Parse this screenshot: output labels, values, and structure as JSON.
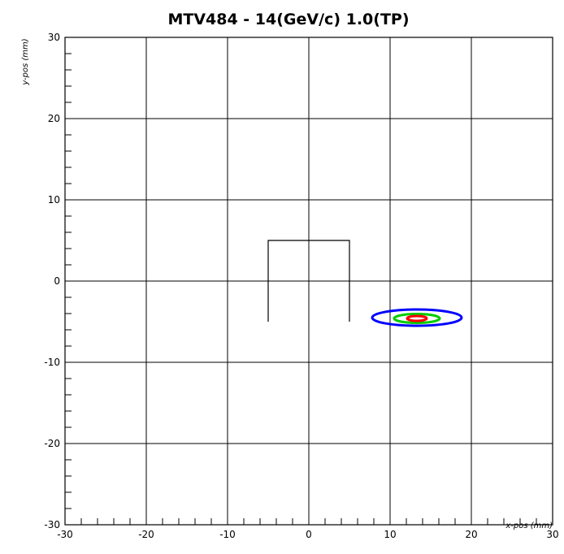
{
  "chart_data": {
    "type": "scatter",
    "title": "MTV484  -  14(GeV/c) 1.0(TP)",
    "xlabel": "x-pos (mm)",
    "ylabel": "y-pos (mm)",
    "xlim": [
      -30,
      30
    ],
    "ylim": [
      -30,
      30
    ],
    "x_major_ticks": [
      -30,
      -20,
      -10,
      0,
      10,
      20,
      30
    ],
    "y_major_ticks": [
      -30,
      -20,
      -10,
      0,
      10,
      20,
      30
    ],
    "x_tick_labels": [
      "-30",
      "-20",
      "-10",
      "0",
      "10",
      "20",
      "30"
    ],
    "y_tick_labels": [
      "-30",
      "-20",
      "-10",
      "0",
      "10",
      "20",
      "30"
    ],
    "grid": true,
    "outline": {
      "color": "#000000",
      "points": [
        [
          -5,
          -5
        ],
        [
          -5,
          5
        ],
        [
          5,
          5
        ],
        [
          5,
          -5
        ]
      ]
    },
    "contours": [
      {
        "color": "#0000ff",
        "cx": 13.3,
        "cy": -4.5,
        "rx": 5.5,
        "ry": 1.0
      },
      {
        "color": "#00cc00",
        "cx": 13.3,
        "cy": -4.6,
        "rx": 2.8,
        "ry": 0.55
      },
      {
        "color": "#ff0000",
        "cx": 13.3,
        "cy": -4.6,
        "rx": 1.2,
        "ry": 0.3
      }
    ]
  }
}
